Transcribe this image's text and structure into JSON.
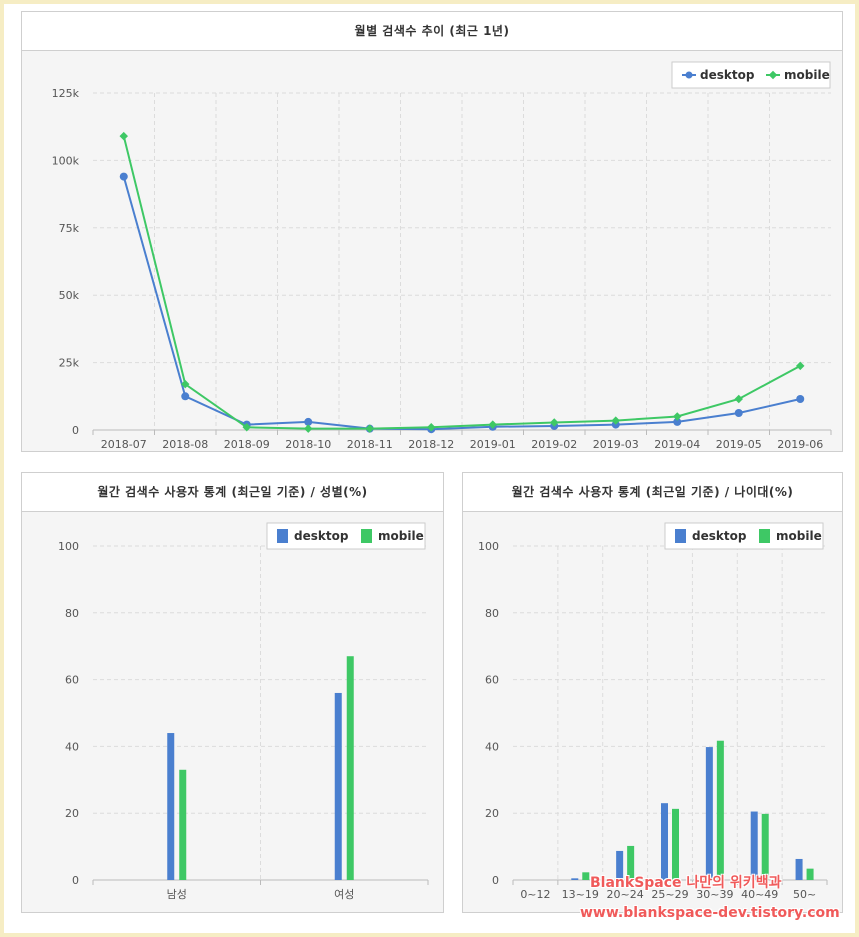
{
  "colors": {
    "desktop": "#4a7fcf",
    "mobile": "#3ec865"
  },
  "watermark": {
    "line1": "BlankSpace 나만의 위키백과",
    "line2": "www.blankspace-dev.tistory.com"
  },
  "chart_data": [
    {
      "type": "line",
      "title": "월별 검색수 추이 (최근 1년)",
      "x": [
        "2018-07",
        "2018-08",
        "2018-09",
        "2018-10",
        "2018-11",
        "2018-12",
        "2019-01",
        "2019-02",
        "2019-03",
        "2019-04",
        "2019-05",
        "2019-06"
      ],
      "series": [
        {
          "name": "desktop",
          "values": [
            94000,
            12500,
            2000,
            3000,
            500,
            300,
            1200,
            1500,
            2000,
            3000,
            6300,
            11500
          ]
        },
        {
          "name": "mobile",
          "values": [
            109000,
            17000,
            1000,
            500,
            500,
            1000,
            2000,
            2800,
            3500,
            5000,
            11500,
            23800
          ]
        }
      ],
      "yticks": [
        "0",
        "25k",
        "50k",
        "75k",
        "100k",
        "125k"
      ],
      "ylim": [
        0,
        125000
      ],
      "legend": "top-right",
      "grid": true
    },
    {
      "type": "bar",
      "title": "월간 검색수 사용자 통계 (최근일 기준) / 성별(%)",
      "categories": [
        "남성",
        "여성"
      ],
      "series": [
        {
          "name": "desktop",
          "values": [
            44,
            56
          ]
        },
        {
          "name": "mobile",
          "values": [
            33,
            67
          ]
        }
      ],
      "yticks": [
        "0",
        "20",
        "40",
        "60",
        "80",
        "100"
      ],
      "ylim": [
        0,
        100
      ],
      "legend": "top-right",
      "grid": true
    },
    {
      "type": "bar",
      "title": "월간 검색수 사용자 통계 (최근일 기준) / 나이대(%)",
      "categories": [
        "0~12",
        "13~19",
        "20~24",
        "25~29",
        "30~39",
        "40~49",
        "50~"
      ],
      "series": [
        {
          "name": "desktop",
          "values": [
            0,
            0.5,
            8.7,
            23,
            39.8,
            20.5,
            6.3
          ]
        },
        {
          "name": "mobile",
          "values": [
            0,
            2.3,
            10.2,
            21.3,
            41.7,
            19.8,
            3.4
          ]
        }
      ],
      "yticks": [
        "0",
        "20",
        "40",
        "60",
        "80",
        "100"
      ],
      "ylim": [
        0,
        100
      ],
      "legend": "top-right",
      "grid": true
    }
  ]
}
